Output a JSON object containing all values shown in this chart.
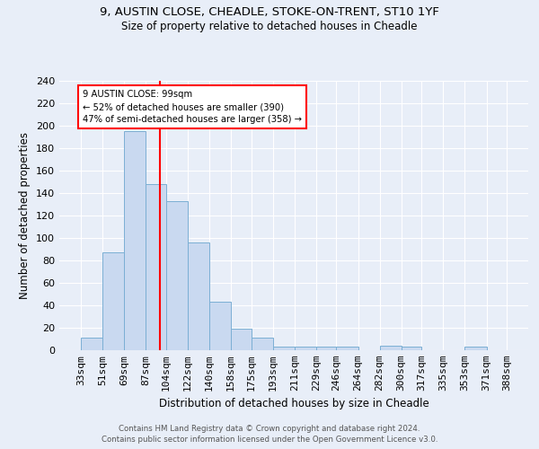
{
  "title1": "9, AUSTIN CLOSE, CHEADLE, STOKE-ON-TRENT, ST10 1YF",
  "title2": "Size of property relative to detached houses in Cheadle",
  "xlabel": "Distribution of detached houses by size in Cheadle",
  "ylabel": "Number of detached properties",
  "bar_edges": [
    33,
    51,
    69,
    87,
    104,
    122,
    140,
    158,
    175,
    193,
    211,
    229,
    246,
    264,
    282,
    300,
    317,
    335,
    353,
    371,
    388
  ],
  "bar_heights": [
    11,
    87,
    195,
    148,
    133,
    96,
    43,
    19,
    11,
    3,
    3,
    3,
    3,
    0,
    4,
    3,
    0,
    0,
    3,
    0
  ],
  "bar_color": "#c9d9f0",
  "bar_edgecolor": "#7bafd4",
  "vline_x": 99,
  "vline_color": "red",
  "annotation_text": "9 AUSTIN CLOSE: 99sqm\n← 52% of detached houses are smaller (390)\n47% of semi-detached houses are larger (358) →",
  "annotation_box_edgecolor": "red",
  "annotation_box_facecolor": "white",
  "ylim": [
    0,
    240
  ],
  "yticks": [
    0,
    20,
    40,
    60,
    80,
    100,
    120,
    140,
    160,
    180,
    200,
    220,
    240
  ],
  "tick_labels": [
    "33sqm",
    "51sqm",
    "69sqm",
    "87sqm",
    "104sqm",
    "122sqm",
    "140sqm",
    "158sqm",
    "175sqm",
    "193sqm",
    "211sqm",
    "229sqm",
    "246sqm",
    "264sqm",
    "282sqm",
    "300sqm",
    "317sqm",
    "335sqm",
    "353sqm",
    "371sqm",
    "388sqm"
  ],
  "footer1": "Contains HM Land Registry data © Crown copyright and database right 2024.",
  "footer2": "Contains public sector information licensed under the Open Government Licence v3.0.",
  "background_color": "#e8eef8",
  "grid_color": "white"
}
